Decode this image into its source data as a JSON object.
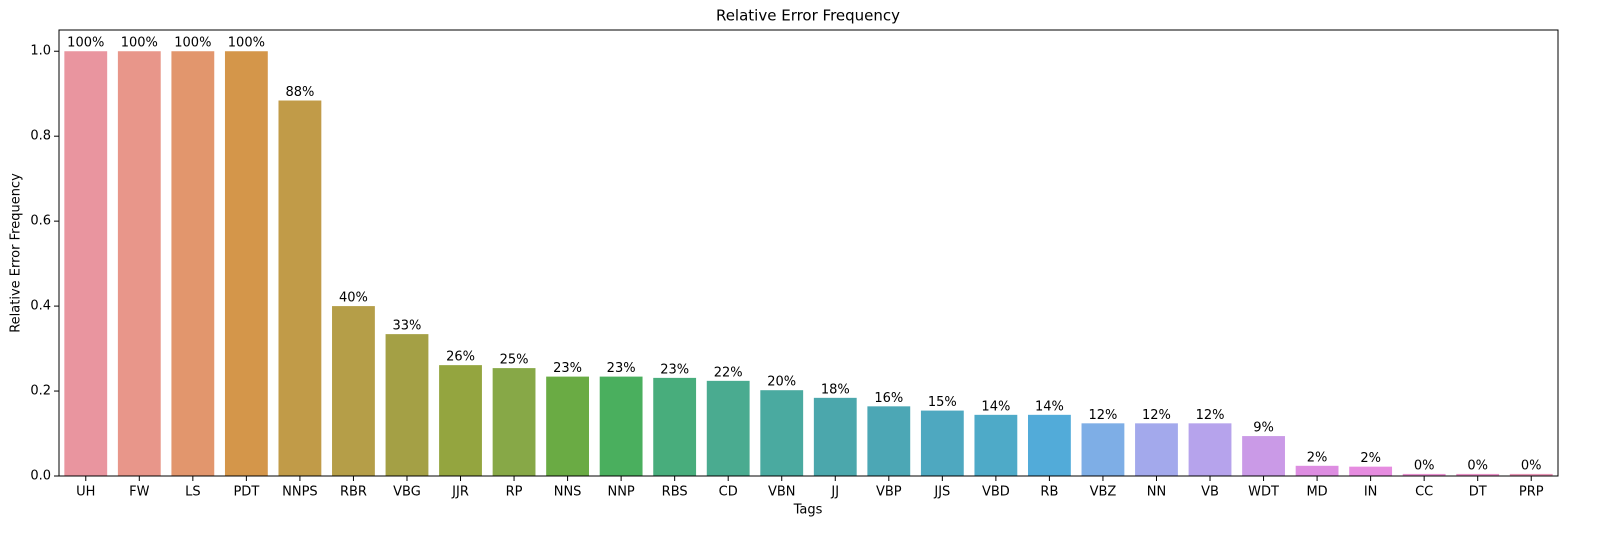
{
  "chart_data": {
    "type": "bar",
    "title": "Relative Error Frequency",
    "x_label": "Tags",
    "y_label": "Relative Error Frequency",
    "categories": [
      "UH",
      "FW",
      "LS",
      "PDT",
      "NNPS",
      "RBR",
      "VBG",
      "JJR",
      "RP",
      "NNS",
      "NNP",
      "RBS",
      "CD",
      "VBN",
      "JJ",
      "VBP",
      "JJS",
      "VBD",
      "RB",
      "VBZ",
      "NN",
      "VB",
      "WDT",
      "MD",
      "IN",
      "CC",
      "DT",
      "PRP"
    ],
    "values": [
      1.0,
      1.0,
      1.0,
      1.0,
      0.884,
      0.4,
      0.334,
      0.261,
      0.254,
      0.234,
      0.234,
      0.231,
      0.224,
      0.202,
      0.184,
      0.164,
      0.154,
      0.144,
      0.144,
      0.124,
      0.124,
      0.124,
      0.094,
      0.024,
      0.022,
      0.0049,
      0.0049,
      0.0049
    ],
    "value_labels": [
      "100%",
      "100%",
      "100%",
      "100%",
      "88%",
      "40%",
      "33%",
      "26%",
      "25%",
      "23%",
      "23%",
      "23%",
      "22%",
      "20%",
      "18%",
      "16%",
      "15%",
      "14%",
      "14%",
      "12%",
      "12%",
      "12%",
      "9%",
      "2%",
      "2%",
      "0%",
      "0%",
      "0%"
    ],
    "colors": [
      "#e9959f",
      "#e8968a",
      "#e2966d",
      "#d4964a",
      "#c19b48",
      "#b59e48",
      "#a4a045",
      "#94a53f",
      "#87a847",
      "#6aab44",
      "#4aaf5e",
      "#48ad7c",
      "#4aab90",
      "#4aaaa0",
      "#4ba7ac",
      "#4ca7b5",
      "#4ea8c0",
      "#4eaac8",
      "#52abd9",
      "#7eaee6",
      "#a3a9ec",
      "#b6a3ec",
      "#ca9ae7",
      "#dd8de1",
      "#e68ce0",
      "#e890d0",
      "#e890c6",
      "#e895b6"
    ],
    "ylim": [
      0,
      1.05
    ],
    "yticks": [
      {
        "value": 0,
        "label": "0.0"
      },
      0.2,
      0.4,
      0.6,
      0.8,
      {
        "value": 1,
        "label": "1.0"
      }
    ]
  }
}
